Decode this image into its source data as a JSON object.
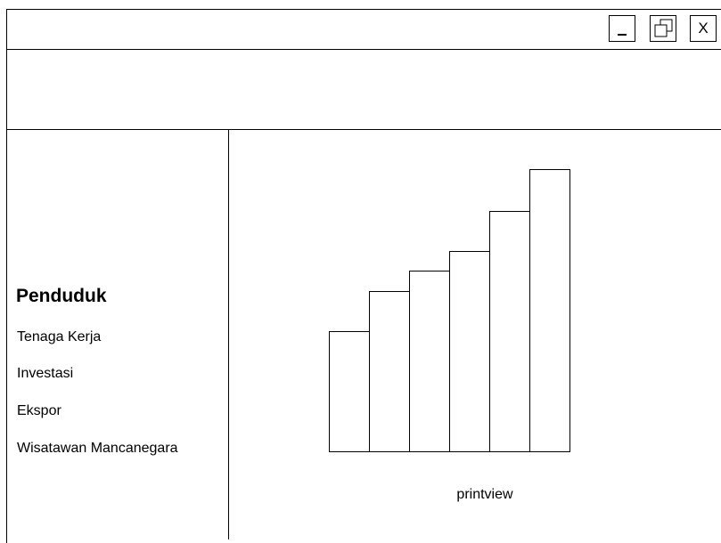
{
  "window": {
    "controls": {
      "minimize_label": "_",
      "restore_icon": "restore-icon",
      "close_label": "X"
    }
  },
  "sidebar": {
    "title": "Penduduk",
    "items": [
      {
        "label": "Tenaga Kerja"
      },
      {
        "label": "Investasi"
      },
      {
        "label": "Ekspor"
      },
      {
        "label": "Wisatawan Mancanegara"
      }
    ]
  },
  "main": {
    "caption": "printview"
  },
  "chart_data": {
    "type": "bar",
    "categories": [
      "",
      "",
      "",
      "",
      "",
      ""
    ],
    "values": [
      135,
      180,
      203,
      225,
      270,
      317
    ],
    "title": "",
    "xlabel": "",
    "ylabel": "",
    "ylim": [
      0,
      317
    ],
    "grid": false,
    "legend": "none",
    "bar_fill": "#ffffff",
    "bar_stroke": "#000000"
  }
}
